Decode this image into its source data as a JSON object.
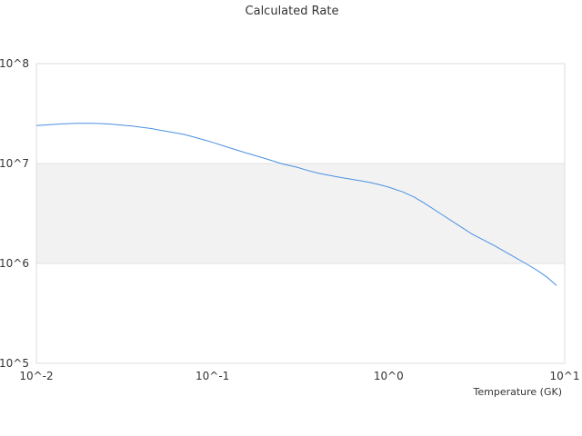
{
  "chart_data": {
    "type": "line",
    "title": "Calculated Rate",
    "xlabel": "Temperature (GK)",
    "ylabel": "",
    "x_scale": "log",
    "y_scale": "log",
    "xlim": [
      0.01,
      10
    ],
    "ylim": [
      100000,
      100000000
    ],
    "x_ticks": [
      {
        "value": 0.01,
        "label": "10^-2"
      },
      {
        "value": 0.1,
        "label": "10^-1"
      },
      {
        "value": 1,
        "label": "10^0"
      },
      {
        "value": 10,
        "label": "10^1"
      }
    ],
    "y_ticks": [
      {
        "value": 100000,
        "label": "10^5"
      },
      {
        "value": 1000000,
        "label": "10^6"
      },
      {
        "value": 10000000,
        "label": "10^7"
      },
      {
        "value": 100000000,
        "label": "10^8"
      }
    ],
    "bands": [
      "#ffffff",
      "#f2f2f2",
      "#ffffff"
    ],
    "grid": true,
    "series": [
      {
        "color": "#4a90e2",
        "x": [
          0.01,
          0.012,
          0.014,
          0.017,
          0.02,
          0.023,
          0.027,
          0.03,
          0.035,
          0.04,
          0.045,
          0.05,
          0.06,
          0.07,
          0.08,
          0.09,
          0.1,
          0.12,
          0.15,
          0.2,
          0.25,
          0.3,
          0.35,
          0.4,
          0.5,
          0.6,
          0.7,
          0.8,
          0.9,
          1.0,
          1.2,
          1.4,
          1.6,
          2.0,
          2.5,
          3.0,
          3.5,
          4.0,
          5.0,
          6.0,
          7.0,
          8.0,
          9.0
        ],
        "y": [
          24000000,
          24500000,
          24900000,
          25200000,
          25300000,
          25100000,
          24700000,
          24300000,
          23700000,
          23000000,
          22400000,
          21600000,
          20400000,
          19400000,
          18200000,
          17200000,
          16300000,
          14700000,
          13000000,
          11200000,
          9900000,
          9200000,
          8500000,
          8000000,
          7400000,
          7000000,
          6700000,
          6400000,
          6100000,
          5800000,
          5200000,
          4600000,
          4000000,
          3100000,
          2400000,
          1950000,
          1700000,
          1500000,
          1200000,
          1000000,
          850000,
          720000,
          600000
        ]
      }
    ]
  }
}
